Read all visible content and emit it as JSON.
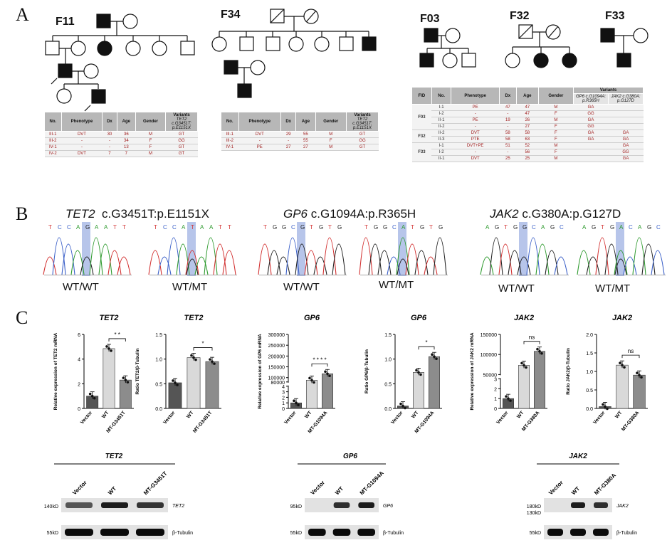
{
  "panel_labels": {
    "a": "A",
    "b": "B",
    "c": "C"
  },
  "families": {
    "f11": "F11",
    "f34": "F34",
    "f03": "F03",
    "f32": "F32",
    "f33": "F33"
  },
  "table_f11": {
    "headers": [
      "No.",
      "Phenotype",
      "Dx",
      "Age",
      "Gender",
      "Variants"
    ],
    "variant_sub": "TET2 c.G3451T: p.E1151X",
    "rows": [
      [
        "III-1",
        "DVT",
        "30",
        "36",
        "M",
        "GT"
      ],
      [
        "III-2",
        "-",
        "-",
        "34",
        "F",
        "GG"
      ],
      [
        "IV-1",
        "-",
        "-",
        "13",
        "F",
        "GT"
      ],
      [
        "IV-2",
        "DVT",
        "7",
        "7",
        "M",
        "GT"
      ]
    ]
  },
  "table_f34": {
    "headers": [
      "No.",
      "Phenotype",
      "Dx",
      "Age",
      "Gender",
      "Variants"
    ],
    "variant_sub": "TET2 c.G3451T: p.E1151X",
    "rows": [
      [
        "III-1",
        "DVT",
        "29",
        "55",
        "M",
        "GT"
      ],
      [
        "III-2",
        "-",
        "-",
        "55",
        "F",
        "GG"
      ],
      [
        "IV-1",
        "PE",
        "27",
        "27",
        "M",
        "GT"
      ]
    ]
  },
  "table_right": {
    "headers": [
      "FID",
      "No.",
      "Phenotype",
      "Dx",
      "Age",
      "Gender"
    ],
    "variants_header": "Variants",
    "gp6_sub": "GP6 c.G1094A: p.R365H",
    "jak2_sub": "JAK2 c.G380A: p.G127D",
    "groups": [
      {
        "fid": "F03",
        "rows": [
          [
            "I-1",
            "PE",
            "47",
            "47",
            "M",
            "GA",
            ""
          ],
          [
            "I-2",
            "-",
            "-",
            "47",
            "F",
            "GG",
            ""
          ],
          [
            "II-1",
            "PE",
            "19",
            "26",
            "M",
            "GA",
            ""
          ],
          [
            "II-2",
            "-",
            "-",
            "27",
            "F",
            "GG",
            ""
          ]
        ]
      },
      {
        "fid": "F32",
        "rows": [
          [
            "II-2",
            "DVT",
            "58",
            "58",
            "F",
            "GA",
            "GA"
          ],
          [
            "II-3",
            "PTE",
            "58",
            "63",
            "F",
            "GA",
            "GA"
          ]
        ]
      },
      {
        "fid": "F33",
        "rows": [
          [
            "I-1",
            "DVT+PE",
            "51",
            "52",
            "M",
            "",
            "GA"
          ],
          [
            "I-2",
            "-",
            "-",
            "56",
            "F",
            "",
            "GG"
          ],
          [
            "II-1",
            "DVT",
            "25",
            "25",
            "M",
            "",
            "GA"
          ]
        ]
      }
    ]
  },
  "panel_b": {
    "tet2": {
      "gene": "TET2",
      "mut": "c.G3451T:p.E1151X",
      "wt_seq": "TCCAGAATT",
      "mt_seq": "TCCATAATT",
      "g1": "WT/WT",
      "g2": "WT/MT"
    },
    "gp6": {
      "gene": "GP6",
      "mut": "c.G1094A:p.R365H",
      "wt_seq": "TGGCGTGTG",
      "mt_seq": "TGGCATGTG",
      "g1": "WT/WT",
      "g2": "WT/MT"
    },
    "jak2": {
      "gene": "JAK2",
      "mut": "c.G380A:p.G127D",
      "wt_seq": "AGTGGCAGC",
      "mt_seq": "AGTGACAGC",
      "g1": "WT/WT",
      "g2": "WT/MT"
    }
  },
  "chart_data": [
    {
      "type": "bar",
      "title": "TET2",
      "ylabel": "Relative expression of TET2 mRNA",
      "categories": [
        "Vector",
        "WT",
        "MT-G3451T"
      ],
      "values": [
        1.0,
        4.85,
        2.3
      ],
      "ylim": [
        0,
        6
      ],
      "yticks": [
        "0",
        "2",
        "4",
        "6"
      ],
      "sig": "* *",
      "colors": [
        "#555555",
        "#d9d9d9",
        "#8c8c8c"
      ]
    },
    {
      "type": "bar",
      "title": "TET2",
      "ylabel": "Ratio TET2/β-Tubulin",
      "categories": [
        "Vector",
        "WT",
        "MT-G3451T"
      ],
      "values": [
        0.52,
        1.03,
        0.95
      ],
      "ylim": [
        0,
        1.5
      ],
      "yticks": [
        "0.0",
        "0.5",
        "1.0",
        "1.5"
      ],
      "sig": "*",
      "colors": [
        "#555555",
        "#d9d9d9",
        "#8c8c8c"
      ]
    },
    {
      "type": "bar",
      "title": "GP6",
      "ylabel": "Relative expression of GP6 mRNA",
      "categories": [
        "Vector",
        "WT",
        "MT-G1094A"
      ],
      "values": [
        1.0,
        88000,
        118000
      ],
      "yticks": [
        "0",
        "1",
        "2",
        "3",
        "4",
        "80000",
        "100000",
        "150000",
        "200000",
        "250000",
        "300000"
      ],
      "sig": "* * * *",
      "colors": [
        "#555555",
        "#d9d9d9",
        "#8c8c8c"
      ]
    },
    {
      "type": "bar",
      "title": "GP6",
      "ylabel": "Ratio GP6/β-Tubulin",
      "categories": [
        "Vector",
        "WT",
        "MT-G1094A"
      ],
      "values": [
        0.05,
        0.73,
        1.05
      ],
      "ylim": [
        0,
        1.5
      ],
      "yticks": [
        "0.0",
        "0.5",
        "1.0",
        "1.5"
      ],
      "sig": "*",
      "colors": [
        "#555555",
        "#d9d9d9",
        "#8c8c8c"
      ]
    },
    {
      "type": "bar",
      "title": "JAK2",
      "ylabel": "Relative expression of JAK2 mRNA",
      "categories": [
        "Vector",
        "WT",
        "MT-G380A"
      ],
      "values": [
        1.0,
        73000,
        108000
      ],
      "yticks": [
        "0",
        "1",
        "2",
        "3",
        "50000",
        "100000",
        "150000"
      ],
      "sig": "ns",
      "colors": [
        "#555555",
        "#d9d9d9",
        "#8c8c8c"
      ]
    },
    {
      "type": "bar",
      "title": "JAK2",
      "ylabel": "Ratio JAK2/β-Tubulin",
      "categories": [
        "Vector",
        "WT",
        "MT-G380A"
      ],
      "values": [
        0.05,
        1.17,
        0.9
      ],
      "ylim": [
        0,
        2.0
      ],
      "yticks": [
        "0.0",
        "0.5",
        "1.0",
        "1.5",
        "2.0"
      ],
      "sig": "ns",
      "colors": [
        "#555555",
        "#d9d9d9",
        "#8c8c8c"
      ]
    }
  ],
  "western": {
    "tet2": {
      "title": "TET2",
      "lanes": [
        "Vector",
        "WT",
        "MT-G3451T"
      ],
      "kd1": "140kD",
      "kd2": "55kD",
      "band1": "TET2",
      "band2": "β-Tubulin"
    },
    "gp6": {
      "title": "GP6",
      "lanes": [
        "Vector",
        "WT",
        "MT-G1094A"
      ],
      "kd1": "95kD",
      "kd2": "55kD",
      "band1": "GP6",
      "band2": "β-Tubulin"
    },
    "jak2": {
      "title": "JAK2",
      "lanes": [
        "Vector",
        "WT",
        "MT-G380A"
      ],
      "kd1": "180kD",
      "kd1b": "130kD",
      "kd2": "55kD",
      "band1": "JAK2",
      "band2": "β-Tubulin"
    }
  }
}
